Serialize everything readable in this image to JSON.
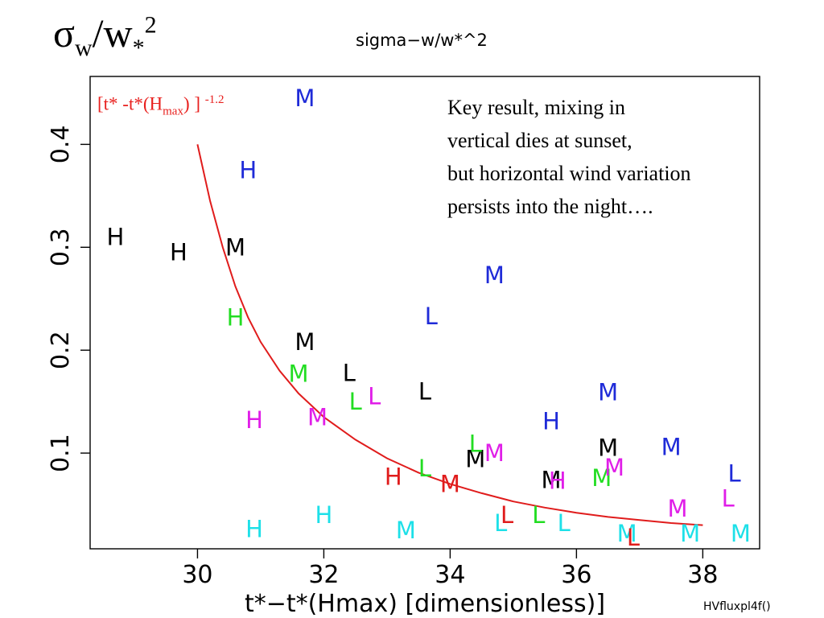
{
  "slide": {
    "title_main": "σ",
    "title_sub": "w",
    "title_mid": "/w",
    "title_sub2": "*",
    "title_sup": "2",
    "footer": "HVfluxpl4f()",
    "note_lines": [
      "Key result, mixing in",
      "vertical dies at sunset,",
      "but horizontal wind variation",
      "persists into the night…."
    ],
    "curve_label": {
      "prefix": "[t* -t*(H",
      "sub": "max",
      "suffix": ") ] ",
      "sup": "-1.2"
    }
  },
  "chart_data": {
    "type": "scatter",
    "title": "sigma−w/w*^2",
    "xlabel": "t*−t*(Hmax) [dimensionless)]",
    "ylabel": "",
    "xlim": [
      28.3,
      38.9
    ],
    "ylim": [
      0.007,
      0.466
    ],
    "x_ticks": [
      30,
      32,
      34,
      36,
      38
    ],
    "y_ticks": [
      0.1,
      0.2,
      0.3,
      0.4
    ],
    "grid": false,
    "colors": {
      "black": "#000000",
      "blue": "#1f2bd8",
      "green": "#22dd22",
      "magenta": "#e01ee8",
      "cyan": "#1de0e8",
      "red": "#e01c1c"
    },
    "points": [
      {
        "label": "H",
        "color": "black",
        "x": 28.7,
        "y": 0.31
      },
      {
        "label": "H",
        "color": "black",
        "x": 29.7,
        "y": 0.295
      },
      {
        "label": "M",
        "color": "black",
        "x": 30.6,
        "y": 0.3
      },
      {
        "label": "M",
        "color": "black",
        "x": 31.7,
        "y": 0.208
      },
      {
        "label": "L",
        "color": "black",
        "x": 32.4,
        "y": 0.178
      },
      {
        "label": "L",
        "color": "black",
        "x": 33.6,
        "y": 0.16
      },
      {
        "label": "M",
        "color": "black",
        "x": 34.4,
        "y": 0.094
      },
      {
        "label": "M",
        "color": "black",
        "x": 35.6,
        "y": 0.074
      },
      {
        "label": "M",
        "color": "black",
        "x": 36.5,
        "y": 0.105
      },
      {
        "label": "M",
        "color": "blue",
        "x": 31.7,
        "y": 0.445
      },
      {
        "label": "H",
        "color": "blue",
        "x": 30.8,
        "y": 0.375
      },
      {
        "label": "M",
        "color": "blue",
        "x": 34.7,
        "y": 0.273
      },
      {
        "label": "L",
        "color": "blue",
        "x": 33.7,
        "y": 0.233
      },
      {
        "label": "M",
        "color": "blue",
        "x": 36.5,
        "y": 0.159
      },
      {
        "label": "H",
        "color": "blue",
        "x": 35.6,
        "y": 0.131
      },
      {
        "label": "M",
        "color": "blue",
        "x": 37.5,
        "y": 0.106
      },
      {
        "label": "L",
        "color": "blue",
        "x": 38.5,
        "y": 0.08
      },
      {
        "label": "H",
        "color": "green",
        "x": 30.6,
        "y": 0.232
      },
      {
        "label": "M",
        "color": "green",
        "x": 31.6,
        "y": 0.177
      },
      {
        "label": "L",
        "color": "green",
        "x": 32.5,
        "y": 0.15
      },
      {
        "label": "L",
        "color": "green",
        "x": 34.4,
        "y": 0.109
      },
      {
        "label": "L",
        "color": "green",
        "x": 33.6,
        "y": 0.085
      },
      {
        "label": "M",
        "color": "green",
        "x": 36.4,
        "y": 0.076
      },
      {
        "label": "L",
        "color": "green",
        "x": 35.4,
        "y": 0.04
      },
      {
        "label": "L",
        "color": "magenta",
        "x": 32.8,
        "y": 0.155
      },
      {
        "label": "H",
        "color": "magenta",
        "x": 30.9,
        "y": 0.132
      },
      {
        "label": "M",
        "color": "magenta",
        "x": 31.9,
        "y": 0.135
      },
      {
        "label": "M",
        "color": "magenta",
        "x": 34.7,
        "y": 0.1
      },
      {
        "label": "M",
        "color": "magenta",
        "x": 36.6,
        "y": 0.086
      },
      {
        "label": "H",
        "color": "magenta",
        "x": 35.7,
        "y": 0.073
      },
      {
        "label": "M",
        "color": "magenta",
        "x": 37.6,
        "y": 0.046
      },
      {
        "label": "L",
        "color": "magenta",
        "x": 38.4,
        "y": 0.056
      },
      {
        "label": "H",
        "color": "cyan",
        "x": 30.9,
        "y": 0.026
      },
      {
        "label": "H",
        "color": "cyan",
        "x": 32.0,
        "y": 0.04
      },
      {
        "label": "M",
        "color": "cyan",
        "x": 33.3,
        "y": 0.025
      },
      {
        "label": "L",
        "color": "cyan",
        "x": 34.8,
        "y": 0.032
      },
      {
        "label": "L",
        "color": "cyan",
        "x": 35.8,
        "y": 0.032
      },
      {
        "label": "M",
        "color": "cyan",
        "x": 36.8,
        "y": 0.022
      },
      {
        "label": "M",
        "color": "cyan",
        "x": 37.8,
        "y": 0.022
      },
      {
        "label": "M",
        "color": "cyan",
        "x": 38.6,
        "y": 0.022
      },
      {
        "label": "H",
        "color": "red",
        "x": 33.1,
        "y": 0.077
      },
      {
        "label": "M",
        "color": "red",
        "x": 34.0,
        "y": 0.07
      },
      {
        "label": "L",
        "color": "red",
        "x": 34.9,
        "y": 0.04
      },
      {
        "label": "L",
        "color": "red",
        "x": 36.9,
        "y": 0.018
      }
    ],
    "fit_curve": {
      "color": "#e01c1c",
      "points": [
        [
          30.0,
          0.4
        ],
        [
          30.2,
          0.345
        ],
        [
          30.4,
          0.3
        ],
        [
          30.6,
          0.262
        ],
        [
          30.8,
          0.232
        ],
        [
          31.0,
          0.208
        ],
        [
          31.3,
          0.18
        ],
        [
          31.6,
          0.158
        ],
        [
          32.0,
          0.135
        ],
        [
          32.5,
          0.113
        ],
        [
          33.0,
          0.095
        ],
        [
          33.5,
          0.081
        ],
        [
          34.0,
          0.07
        ],
        [
          34.5,
          0.061
        ],
        [
          35.0,
          0.053
        ],
        [
          35.5,
          0.047
        ],
        [
          36.0,
          0.042
        ],
        [
          36.5,
          0.038
        ],
        [
          37.0,
          0.035
        ],
        [
          37.5,
          0.032
        ],
        [
          38.0,
          0.03
        ]
      ]
    }
  }
}
